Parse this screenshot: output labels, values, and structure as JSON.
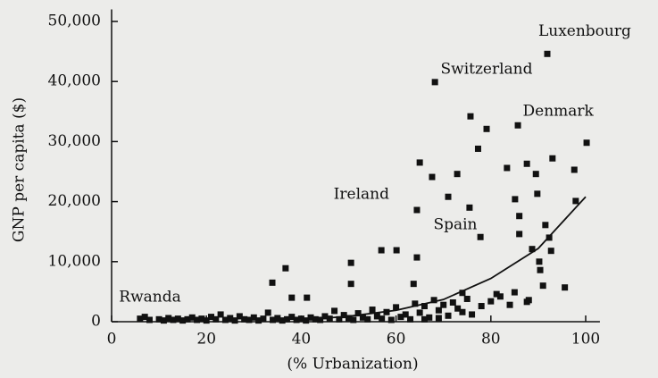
{
  "chart_data": {
    "type": "scatter",
    "x_label": "(% Urbanization)",
    "y_label": "GNP per capita ($)",
    "color": "#111111",
    "xlim": [
      0,
      103
    ],
    "ylim": [
      0,
      52000
    ],
    "xticks": [
      0,
      20,
      40,
      60,
      80,
      100
    ],
    "yticks": [
      0,
      {
        "value": 10000,
        "label": "10,000"
      },
      {
        "value": 20000,
        "label": "20,000"
      },
      {
        "value": 30000,
        "label": "30,000"
      },
      {
        "value": 40000,
        "label": "40,000"
      },
      {
        "value": 50000,
        "label": "50,000"
      }
    ],
    "x": [
      91.9,
      68.2,
      85.7,
      75.7,
      79.1,
      100.2,
      77.3,
      93,
      87.6,
      89.5,
      65,
      67.6,
      72.9,
      83.4,
      97.6,
      64.4,
      71,
      75.5,
      85.1,
      89.8,
      97.9,
      86,
      91.5,
      86,
      77.8,
      92.3,
      88.7,
      92.7,
      56.9,
      60.1,
      64.4,
      50.5,
      90.2,
      90.4,
      33.9,
      36.7,
      38,
      41.2,
      50.5,
      63.7,
      74,
      81.2,
      85,
      91,
      87.6,
      95.6,
      6,
      7,
      8,
      10,
      11,
      12,
      13,
      14,
      15,
      16,
      17,
      18,
      19,
      20,
      21,
      22,
      23,
      24,
      25,
      26,
      27,
      28,
      29,
      30,
      31,
      32,
      33,
      34,
      35,
      36,
      37,
      38,
      39,
      40,
      41,
      42,
      43,
      44,
      45,
      46,
      47,
      48,
      49,
      50,
      51,
      52,
      53,
      54,
      55,
      56,
      57,
      58,
      59,
      60,
      61,
      62,
      63,
      64,
      65,
      66,
      67,
      68,
      69,
      70,
      71,
      72,
      73,
      74,
      75,
      76,
      78,
      80,
      82,
      84,
      88,
      66,
      69
    ],
    "values": [
      44600,
      39900,
      32700,
      34200,
      32100,
      29800,
      28800,
      27200,
      26300,
      24600,
      26500,
      24100,
      24600,
      25600,
      25300,
      18600,
      20800,
      19000,
      20400,
      21300,
      20100,
      17600,
      16100,
      14600,
      14100,
      14000,
      12100,
      11800,
      11900,
      11900,
      10700,
      9800,
      10000,
      8600,
      6500,
      8900,
      4000,
      4000,
      6300,
      6300,
      4800,
      4600,
      4900,
      6000,
      3300,
      5700,
      500,
      800,
      300,
      400,
      200,
      600,
      300,
      500,
      200,
      400,
      700,
      300,
      500,
      200,
      800,
      400,
      1200,
      300,
      600,
      200,
      900,
      400,
      300,
      700,
      200,
      500,
      1500,
      300,
      600,
      200,
      400,
      800,
      300,
      500,
      200,
      700,
      400,
      300,
      900,
      500,
      1800,
      400,
      1100,
      600,
      300,
      1400,
      700,
      400,
      2000,
      900,
      500,
      1600,
      300,
      2400,
      800,
      1200,
      400,
      3000,
      1500,
      2600,
      700,
      3600,
      1900,
      2800,
      1000,
      3200,
      2200,
      1600,
      3800,
      1200,
      2600,
      3400,
      4200,
      2800,
      3600,
      400,
      600
    ],
    "trend": {
      "x": [
        40,
        50,
        60,
        70,
        80,
        90,
        100
      ],
      "values": [
        300,
        900,
        1900,
        3700,
        7200,
        12200,
        20800
      ]
    },
    "annotations": [
      {
        "text": "Luxenbourg",
        "x": 99.8,
        "y": 48300
      },
      {
        "text": "Switzerland",
        "x": 79.1,
        "y": 42000
      },
      {
        "text": "Denmark",
        "x": 94.2,
        "y": 35000
      },
      {
        "text": "Ireland",
        "x": 52.7,
        "y": 21100
      },
      {
        "text": "Spain",
        "x": 72.5,
        "y": 16100
      },
      {
        "text": "Rwanda",
        "x": 8.1,
        "y": 4000
      }
    ]
  }
}
